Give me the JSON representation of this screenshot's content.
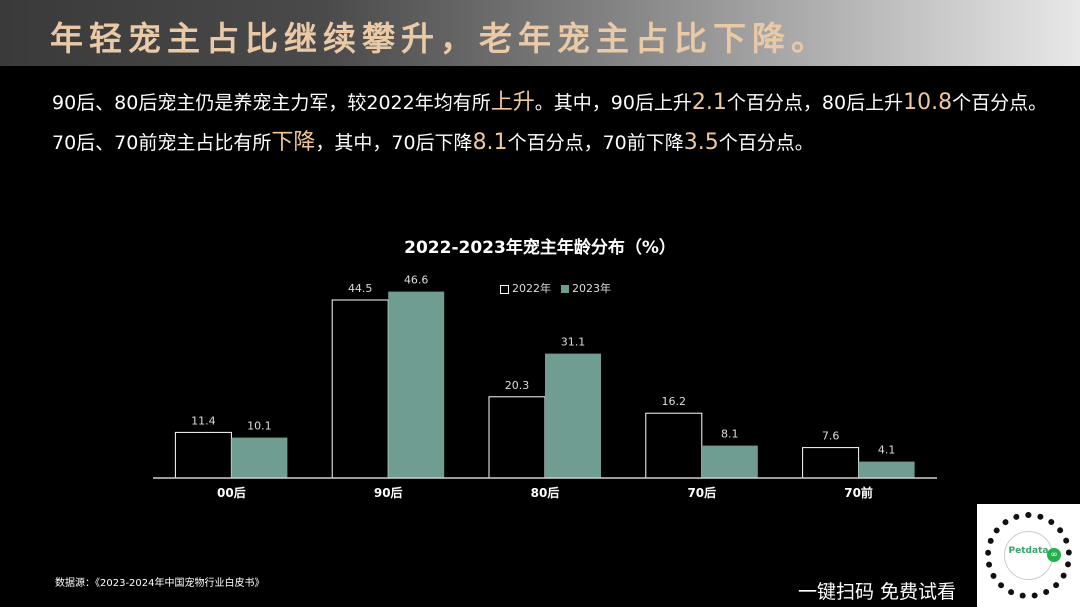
{
  "slide_title": "年轻宠主占比继续攀升，老年宠主占比下降。",
  "para1": {
    "a": "90后、80后宠主仍是养宠主力军，较2022年均有所",
    "b": "上升",
    "c": "。其中，90后上升",
    "d": "2.1",
    "e": "个百分点，80后上升",
    "f": "10.8",
    "g": "个百分点。"
  },
  "para2": {
    "a": "70后、70前宠主占比有所",
    "b": "下降",
    "c": "，其中，70后下降",
    "d": "8.1",
    "e": "个百分点，70前下降",
    "f": "3.5",
    "g": "个百分点。"
  },
  "source": "数据源：《2023-2024年中国宠物行业白皮书》",
  "cta": "一键扫码 免费试看",
  "qr": {
    "brand": "Petdata",
    "badge_icon": "miniprogram-icon"
  },
  "colors": {
    "title": "#e9c9a6",
    "highlight": "#f0c89a",
    "series2023": "#6f9d92",
    "series2022_outline": "#ffffff"
  },
  "chart_data": {
    "type": "bar",
    "title": "2022-2023年宠主年龄分布（%）",
    "categories": [
      "00后",
      "90后",
      "80后",
      "70后",
      "70前"
    ],
    "series": [
      {
        "name": "2022年",
        "values": [
          11.4,
          44.5,
          20.3,
          16.2,
          7.6
        ]
      },
      {
        "name": "2023年",
        "values": [
          10.1,
          46.6,
          31.1,
          8.1,
          4.1
        ]
      }
    ],
    "xlabel": "",
    "ylabel": "",
    "ylim": [
      0,
      50
    ],
    "grid": false,
    "legend_position": "top-center",
    "data_labels": true
  }
}
